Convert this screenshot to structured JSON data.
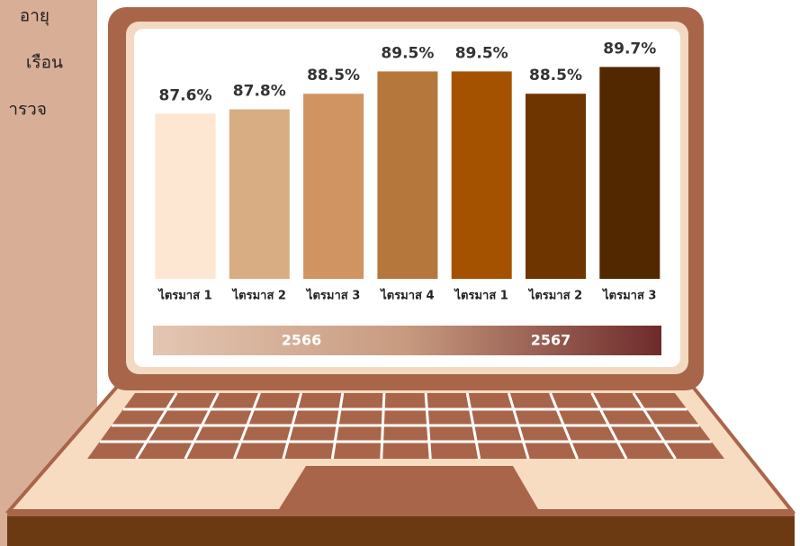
{
  "side_text": [
    "อายุ",
    "เรือน",
    "ารวจ"
  ],
  "chart_data": {
    "type": "bar",
    "categories": [
      "ไตรมาส 1",
      "ไตรมาส 2",
      "ไตรมาส 3",
      "ไตรมาส 4",
      "ไตรมาส 1",
      "ไตรมาส 2",
      "ไตรมาส 3"
    ],
    "values": [
      87.6,
      87.8,
      88.5,
      89.5,
      89.5,
      88.5,
      89.7
    ],
    "value_labels": [
      "87.6%",
      "87.8%",
      "88.5%",
      "89.5%",
      "89.5%",
      "88.5%",
      "89.7%"
    ],
    "colors": [
      "#fde6d2",
      "#d9ad83",
      "#cf9462",
      "#b6773c",
      "#a55200",
      "#6e3500",
      "#522800"
    ],
    "ylim": [
      80.2,
      90
    ],
    "x_groups": [
      "2566",
      "2567"
    ]
  }
}
